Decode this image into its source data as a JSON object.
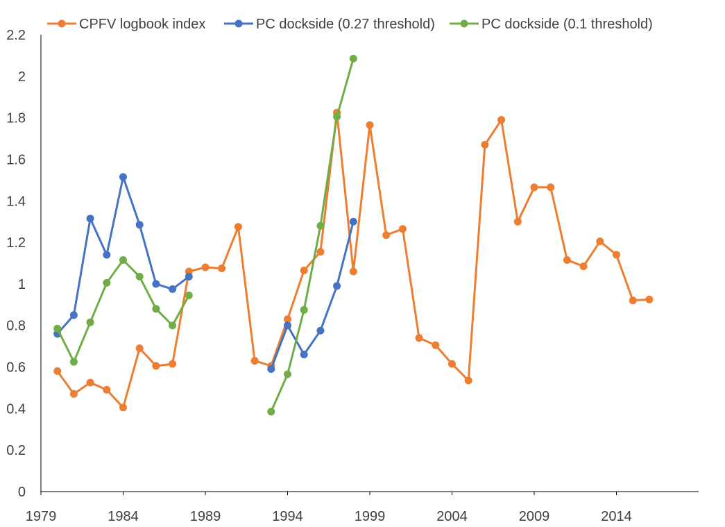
{
  "chart_data": {
    "type": "line",
    "title": "",
    "xlabel": "",
    "ylabel": "",
    "xlim": [
      1979,
      2019
    ],
    "ylim": [
      0,
      2.2
    ],
    "x_ticks": [
      "1979",
      "1984",
      "1989",
      "1994",
      "1999",
      "2004",
      "2009",
      "2014"
    ],
    "y_ticks": [
      "0",
      "0.2",
      "0.4",
      "0.6",
      "0.8",
      "1",
      "1.2",
      "1.4",
      "1.6",
      "1.8",
      "2",
      "2.2"
    ],
    "grid": false,
    "legend_position": "top",
    "series": [
      {
        "name": "CPFV logbook index",
        "color": "#ED7D31",
        "x": [
          1980,
          1981,
          1982,
          1983,
          1984,
          1985,
          1986,
          1987,
          1988,
          1989,
          1990,
          1991,
          1992,
          1993,
          1994,
          1995,
          1996,
          1997,
          1998,
          1999,
          2000,
          2001,
          2002,
          2003,
          2004,
          2005,
          2006,
          2007,
          2008,
          2009,
          2010,
          2011,
          2012,
          2013,
          2014,
          2015,
          2016
        ],
        "y": [
          0.58,
          0.47,
          0.525,
          0.49,
          0.405,
          0.69,
          0.605,
          0.615,
          1.06,
          1.08,
          1.075,
          1.275,
          0.63,
          0.605,
          0.83,
          1.065,
          1.155,
          1.825,
          1.06,
          1.765,
          1.235,
          1.265,
          0.74,
          0.705,
          0.615,
          0.535,
          1.67,
          1.79,
          1.3,
          1.465,
          1.465,
          1.115,
          1.085,
          1.205,
          1.14,
          0.92,
          0.925
        ]
      },
      {
        "name": "PC dockside (0.27 threshold)",
        "color": "#4472C4",
        "segments": [
          {
            "x": [
              1980,
              1981,
              1982,
              1983,
              1984,
              1985,
              1986,
              1987,
              1988
            ],
            "y": [
              0.76,
              0.85,
              1.315,
              1.14,
              1.515,
              1.285,
              1.0,
              0.975,
              1.035
            ]
          },
          {
            "x": [
              1993,
              1994,
              1995,
              1996,
              1997,
              1998
            ],
            "y": [
              0.59,
              0.8,
              0.66,
              0.775,
              0.99,
              1.3
            ]
          }
        ]
      },
      {
        "name": "PC dockside (0.1 threshold)",
        "color": "#70AD47",
        "segments": [
          {
            "x": [
              1980,
              1981,
              1982,
              1983,
              1984,
              1985,
              1986,
              1987,
              1988
            ],
            "y": [
              0.785,
              0.625,
              0.815,
              1.005,
              1.115,
              1.035,
              0.88,
              0.8,
              0.945
            ]
          },
          {
            "x": [
              1993,
              1994,
              1995,
              1996,
              1997,
              1998
            ],
            "y": [
              0.385,
              0.565,
              0.875,
              1.28,
              1.805,
              2.085
            ]
          }
        ]
      }
    ]
  }
}
